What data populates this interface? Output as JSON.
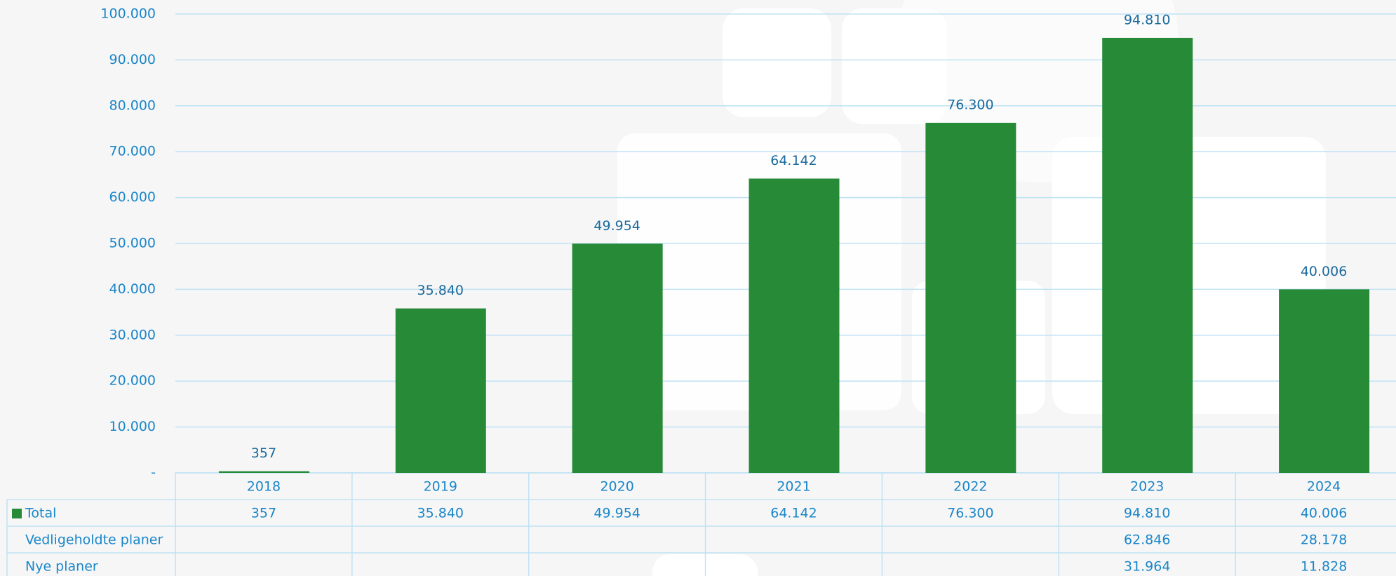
{
  "chart_data": {
    "type": "bar",
    "categories": [
      "2018",
      "2019",
      "2020",
      "2021",
      "2022",
      "2023",
      "2024"
    ],
    "series": [
      {
        "name": "Total",
        "color": "#268a37",
        "values": [
          357,
          35840,
          49954,
          64142,
          76300,
          94810,
          40006
        ],
        "value_labels": [
          "357",
          "35.840",
          "49.954",
          "64.142",
          "76.300",
          "94.810",
          "40.006"
        ]
      },
      {
        "name": "Vedligeholdte planer",
        "values": [
          null,
          null,
          null,
          null,
          null,
          62846,
          28178
        ],
        "value_labels": [
          null,
          null,
          null,
          null,
          null,
          "62.846",
          "28.178"
        ]
      },
      {
        "name": "Nye planer",
        "values": [
          null,
          null,
          null,
          null,
          null,
          31964,
          11828
        ],
        "value_labels": [
          null,
          null,
          null,
          null,
          null,
          "31.964",
          "11.828"
        ]
      }
    ],
    "ylim": [
      0,
      100000
    ],
    "yticks": [
      {
        "value": 0,
        "label": "-"
      },
      {
        "value": 10000,
        "label": "10.000"
      },
      {
        "value": 20000,
        "label": "20.000"
      },
      {
        "value": 30000,
        "label": "30.000"
      },
      {
        "value": 40000,
        "label": "40.000"
      },
      {
        "value": 50000,
        "label": "50.000"
      },
      {
        "value": 60000,
        "label": "60.000"
      },
      {
        "value": 70000,
        "label": "70.000"
      },
      {
        "value": 80000,
        "label": "80.000"
      },
      {
        "value": 90000,
        "label": "90.000"
      },
      {
        "value": 100000,
        "label": "100.000"
      }
    ],
    "grid": true
  }
}
